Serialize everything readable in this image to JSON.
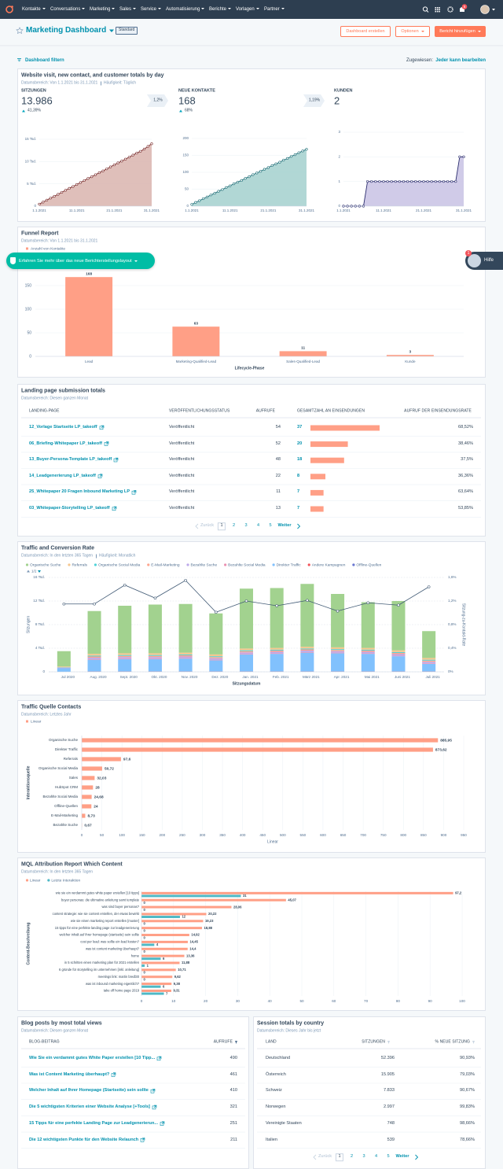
{
  "nav": {
    "items": [
      "Kontakte",
      "Conversations",
      "Marketing",
      "Sales",
      "Service",
      "Automatisierung",
      "Berichte",
      "Vorlagen",
      "Partner"
    ],
    "notifications": 5
  },
  "header": {
    "title": "Marketing Dashboard",
    "tag": "Standard",
    "buttons": [
      "Dashboard erstellen",
      "Optionen",
      "Bericht hinzufügen"
    ]
  },
  "filter_bar": {
    "filter": "Dashboard filtern",
    "assigned_label": "Zugewiesen:",
    "assigned_value": "Jeder kann bearbeiten"
  },
  "banner": "Erfahren Sie mehr über das neue Berichterstellungslayout",
  "help": {
    "label": "Hilfe",
    "badge": 1
  },
  "overview": {
    "title": "Website visit, new contact, and customer totals by day",
    "date_range": "Datumsbereich: Von 1.1.2021 bis 31.1.2021",
    "frequency": "Häufigkeit: Täglich",
    "kpis": [
      {
        "label": "SITZUNGEN",
        "value": "13.986",
        "change": "41,39%",
        "rate": "1,2%"
      },
      {
        "label": "NEUE KONTAKTE",
        "value": 168,
        "change": "68%",
        "rate": "1,19%"
      },
      {
        "label": "KUNDEN",
        "value": 2
      }
    ],
    "charts": [
      {
        "type": "area",
        "color": "#7b2e2e",
        "area_color": "#dcb8b2",
        "categories": [
          "1.1.2021",
          null,
          null,
          null,
          null,
          null,
          null,
          null,
          null,
          null,
          "11.1.2021",
          null,
          null,
          null,
          null,
          null,
          null,
          null,
          null,
          null,
          "21.1.2021",
          null,
          null,
          null,
          null,
          null,
          null,
          null,
          null,
          null,
          "31.1.2021"
        ],
        "values": [
          450,
          900,
          1350,
          1800,
          2200,
          2650,
          3100,
          3550,
          4000,
          4400,
          4850,
          5300,
          5750,
          6200,
          6600,
          7050,
          7500,
          7900,
          8350,
          8800,
          9250,
          9700,
          10100,
          10550,
          11000,
          11450,
          11900,
          12300,
          12800,
          13400,
          13986
        ],
        "ylim": [
          0,
          15000
        ],
        "yticks": [
          0,
          {
            "value": 5000,
            "label": "5 Tsd."
          },
          {
            "value": 10000,
            "label": "10 Tsd."
          },
          {
            "value": 15000,
            "label": "15 Tsd."
          }
        ]
      },
      {
        "type": "area",
        "color": "#1f6f78",
        "area_color": "#a9d3d0",
        "categories": [
          "1.1.2021",
          null,
          null,
          null,
          null,
          null,
          null,
          null,
          null,
          null,
          "11.1.2021",
          null,
          null,
          null,
          null,
          null,
          null,
          null,
          null,
          null,
          "21.1.2021",
          null,
          null,
          null,
          null,
          null,
          null,
          null,
          null,
          null,
          "31.1.2021"
        ],
        "values": [
          5,
          11,
          16,
          22,
          27,
          33,
          38,
          44,
          49,
          55,
          60,
          66,
          71,
          76,
          82,
          87,
          93,
          98,
          103,
          109,
          114,
          120,
          125,
          130,
          136,
          141,
          147,
          152,
          158,
          163,
          168
        ],
        "ylim": [
          0,
          200
        ],
        "yticks": [
          0,
          50,
          100,
          150,
          200
        ]
      },
      {
        "type": "area",
        "color": "#2b2d6e",
        "area_color": "#cbc5e6",
        "categories": [
          "1.1.2021",
          null,
          null,
          null,
          null,
          null,
          null,
          null,
          null,
          null,
          "11.1.2021",
          null,
          null,
          null,
          null,
          null,
          null,
          null,
          null,
          null,
          "21.1.2021",
          null,
          null,
          null,
          null,
          null,
          null,
          null,
          null,
          null,
          "31.1.2021"
        ],
        "values": [
          0,
          0,
          0,
          0,
          0,
          0,
          1,
          1,
          1,
          1,
          1,
          1,
          1,
          1,
          1,
          1,
          1,
          1,
          1,
          1,
          1,
          1,
          1,
          1,
          1,
          1,
          1,
          1,
          1,
          2,
          2
        ],
        "ylim": [
          0,
          3
        ],
        "yticks": [
          0,
          1,
          2,
          3
        ]
      }
    ]
  },
  "funnel": {
    "title": "Funnel Report",
    "date_range": "Datumsbereich: Von 1.1.2021 bis 31.1.2021",
    "chart": {
      "type": "bar",
      "legend": "Anzahl von Kontakte",
      "x_label": "Lifecycle-Phase",
      "color": "#ff9f86",
      "categories": [
        "Lead",
        "Marketing-Qualified-Lead",
        "Sales-Qualified-Lead",
        "Kunde"
      ],
      "values": [
        168,
        63,
        11,
        3
      ],
      "ylim": [
        0,
        175
      ],
      "yticks": [
        0,
        50,
        100,
        150
      ]
    }
  },
  "landing_pages": {
    "title": "Landing page submission totals",
    "date_range": "Datumsbereich: Diesen ganzen Monat",
    "columns": [
      "LANDING-PAGE",
      "VERÖFFENTLICHUNGSSTATUS",
      "AUFRUFE",
      "GESAMTZAHL AN EINSENDUNGEN",
      "AUFRUF DER EINSENDUNGSRATE"
    ],
    "bar_color": "#ff9f86",
    "rows": [
      [
        "12_Vorlage Startseite LP_takeoff",
        "Veröffentlicht",
        54,
        37,
        "68,52%"
      ],
      [
        "06_Briefing-Whitepaper LP_takeoff",
        "Veröffentlicht",
        52,
        20,
        "38,46%"
      ],
      [
        "13_Buyer-Persona-Template LP_takeoff",
        "Veröffentlicht",
        48,
        18,
        "37,5%"
      ],
      [
        "14_Leadgenerierung LP_takeoff",
        "Veröffentlicht",
        22,
        8,
        "36,36%"
      ],
      [
        "25_Whitepaper 20 Fragen Inbound Marketing LP",
        "Veröffentlicht",
        11,
        7,
        "63,64%"
      ],
      [
        "03_Whitepaper-Storytelling LP_takeoff",
        "Veröffentlicht",
        13,
        7,
        "53,85%"
      ]
    ],
    "pagination": {
      "prev": "Zurück",
      "pages": [
        1,
        2,
        3,
        4,
        5
      ],
      "next": "Weiter"
    }
  },
  "traffic": {
    "title": "Traffic and Conversion Rate",
    "date_range": "Datumsbereich: In den letzten 365 Tagen",
    "frequency": "Häufigkeit: Monatlich",
    "legend_page": "1/2",
    "chart": {
      "type": "stacked_bar_line",
      "y_label": "Sitzungen",
      "x_label": "Sitzungsdatum",
      "categories": [
        "Jul 2020",
        "Aug. 2020",
        "Sept. 2020",
        "Okt. 2020",
        "Nov. 2020",
        "Dez. 2020",
        "Jan. 2021",
        "Feb. 2021",
        "März 2021",
        "Apr. 2021",
        "Mai 2021",
        "Juni 2021",
        "Juli 2021"
      ],
      "series": [
        {
          "name": "Organische Suche",
          "color": "#a2d28f",
          "values": [
            2600,
            7250,
            8050,
            8250,
            8250,
            6950,
            10150,
            10150,
            10650,
            9050,
            7750,
            8350,
            4550
          ]
        },
        {
          "name": "Referrals",
          "color": "#f5c78e",
          "values": [
            100,
            300,
            300,
            300,
            300,
            300,
            300,
            300,
            300,
            300,
            300,
            300,
            300
          ]
        },
        {
          "name": "Organische Social Media",
          "color": "#51d3d9",
          "values": [
            50,
            150,
            150,
            150,
            150,
            150,
            150,
            150,
            150,
            150,
            150,
            150,
            150
          ]
        },
        {
          "name": "E-Mail-Marketing",
          "color": "#fea58e",
          "values": [
            50,
            200,
            200,
            200,
            200,
            200,
            200,
            200,
            200,
            200,
            200,
            200,
            200
          ]
        },
        {
          "name": "Bezahlte Suche",
          "color": "#bda9ea",
          "values": [
            100,
            250,
            250,
            250,
            250,
            250,
            250,
            250,
            250,
            250,
            250,
            250,
            250
          ]
        },
        {
          "name": "Bezahlte Social Media",
          "color": "#ea90b1",
          "values": [
            0,
            100,
            100,
            100,
            100,
            100,
            100,
            100,
            100,
            100,
            100,
            100,
            100
          ]
        },
        {
          "name": "Direkter Traffic",
          "color": "#81c1fd",
          "values": [
            600,
            2000,
            2100,
            2100,
            2200,
            1900,
            2900,
            3000,
            3200,
            3100,
            3000,
            2600,
            1300
          ]
        },
        {
          "name": "Andere Kampagnen",
          "color": "#f2545b",
          "values": [
            0,
            50,
            50,
            50,
            50,
            50,
            50,
            50,
            50,
            50,
            50,
            50,
            50
          ]
        },
        {
          "name": "Offline-Quellen",
          "color": "#6a78d1",
          "values": [
            0,
            0,
            0,
            0,
            0,
            0,
            0,
            0,
            0,
            0,
            0,
            0,
            0
          ]
        }
      ],
      "rate": {
        "name": "Sitzung-zu-Kontakt-Rate",
        "color": "#425b76",
        "axis": "y2",
        "values": [
          1.15,
          1.15,
          1.47,
          1.25,
          1.55,
          1.01,
          1.2,
          1.12,
          1.21,
          1.03,
          1.17,
          1.13,
          1.44
        ]
      },
      "ylim": [
        0,
        16000
      ],
      "yticks": [
        0,
        {
          "value": 4000,
          "label": "4 Tsd."
        },
        {
          "value": 8000,
          "label": "8 Tsd."
        },
        {
          "value": 12000,
          "label": "12 Tsd."
        },
        {
          "value": 16000,
          "label": "16 Tsd."
        }
      ],
      "y2lim": [
        0,
        1.6
      ],
      "y2ticks": [
        {
          "value": 0,
          "label": "0%"
        },
        {
          "value": 0.4,
          "label": "0,4%"
        },
        {
          "value": 0.8,
          "label": "0,8%"
        },
        {
          "value": 1.2,
          "label": "1,2%"
        },
        {
          "value": 1.6,
          "label": "1,6%"
        }
      ],
      "grid": true
    }
  },
  "sources": {
    "title": "Traffic Quelle Contacts",
    "date_range": "Datumsbereich: Letztes Jahr",
    "chart": {
      "type": "hbar",
      "y_label": "Interaktionsquelle",
      "x_label": "Linear",
      "categories": [
        "Organische Suche",
        "Direkter Traffic",
        "Referrals",
        "Organische Social Media",
        "Sales",
        "HubSpot CRM",
        "Bezahlte Social Media",
        "Offline-Quellen",
        "E-Mail-Marketing",
        "Bezahlte Suche"
      ],
      "series": [
        {
          "name": "Linear",
          "color": "#ff9f86",
          "values": [
            885.95,
            873.62,
            97.6,
            50.72,
            32.03,
            28,
            24.68,
            24,
            8.73,
            0.67
          ],
          "value_labels": [
            "885,95",
            "873,62",
            "97,6",
            "50,72",
            "32,03",
            "28",
            "24,68",
            "24",
            "8,73",
            "0,67"
          ]
        }
      ],
      "xlim": [
        0,
        950
      ],
      "xticks": [
        0,
        50,
        100,
        150,
        200,
        250,
        300,
        350,
        400,
        450,
        500,
        550,
        600,
        650,
        700,
        750,
        800,
        850,
        900,
        950
      ],
      "grid": true
    }
  },
  "mql": {
    "title": "MQL Attribution Report Which Content",
    "date_range": "Datumsbereich: In den letzten 365 Tagen",
    "chart": {
      "type": "grouped_hbar",
      "y_label": "Content-Beschreibung",
      "categories": [
        "wie sie ein verdammt gutes white paper erstellen [10 tipps]",
        "buyer personas: die ultimative anleitung samt template",
        "was sind buyer personas?",
        "content strategie: wie sie content erstellen, der etwas bewirkt",
        "wie sie einen marketing report erstellen [muster]",
        "15 tipps für eine perfekte landing page zur leadgenerierung",
        "welcher inhalt auf ihrer homepage (startseite) sein sollte",
        "cost per lead: was sollte ein lead kosten?",
        "was ist content marketing überhaupt?",
        "home",
        "in 5 schritten einen marketing plan für 2021 erstellen",
        "6 gründe für storytelling im unternehmen [inkl. anleitung]",
        "meetings link: martin bredl30",
        "was ist inbound marketing eigentlich?",
        "take off home page 2019"
      ],
      "series": [
        {
          "name": "Linear",
          "color": "#ff9f86",
          "values": [
            97.2,
            45.07,
            28.06,
            20.22,
            19.23,
            18.88,
            14.92,
            14.45,
            14.4,
            13.36,
            11.88,
            10.71,
            9.62,
            9.38,
            9.31
          ],
          "value_labels": [
            "97,2",
            "45,07",
            "28,06",
            "20,22",
            "19,23",
            "18,88",
            "14,92",
            "14,45",
            "14,4",
            "13,36",
            "11,88",
            "10,71",
            "9,62",
            "9,38",
            "9,31"
          ]
        },
        {
          "name": "Letzte Interaktion",
          "color": "#4fb9c6",
          "values": [
            31,
            0,
            0,
            12,
            0,
            0,
            0,
            4,
            0,
            6,
            1,
            0,
            0,
            6,
            7
          ]
        }
      ],
      "xlim": [
        0,
        100
      ],
      "xticks": [
        0,
        10,
        20,
        30,
        40,
        50,
        60,
        70,
        80,
        90,
        100
      ],
      "grid": true
    }
  },
  "blog": {
    "title": "Blog posts by most total views",
    "date_range": "Datumsbereich: Diesen ganzen Monat",
    "columns": [
      "BLOG-BEITRAG",
      "AUFRUFE"
    ],
    "rows": [
      [
        "Wie Sie ein verdammt gutes White Paper erstellen [10 Tipp...",
        490
      ],
      [
        "Was ist Content Marketing überhaupt?",
        461
      ],
      [
        "Welcher Inhalt auf Ihrer Homepage (Startseite) sein sollte",
        410
      ],
      [
        "Die 5 wichtigsten Kriterien einer Website Analyse [+Tools]",
        321
      ],
      [
        "15 Tipps für eine perfekte Landing Page zur Leadgenerierun...",
        251
      ],
      [
        "Die 12 wichtigsten Punkte für den Website Relaunch",
        211
      ]
    ]
  },
  "countries": {
    "title": "Session totals by country",
    "date_range": "Datumsbereich: Dieses Jahr bis jetzt",
    "columns": [
      "LAND",
      "SITZUNGEN",
      "% NEUE SITZUNG"
    ],
    "rows": [
      [
        "Deutschland",
        "52.396",
        "90,93%"
      ],
      [
        "Österreich",
        "15.905",
        "79,03%"
      ],
      [
        "Schweiz",
        "7.833",
        "90,67%"
      ],
      [
        "Norwegen",
        "2.997",
        "99,83%"
      ],
      [
        "Vereinigte Staaten",
        748,
        "98,66%"
      ],
      [
        "Italien",
        539,
        "78,66%"
      ]
    ],
    "pagination": {
      "prev": "Zurück",
      "pages": [
        1,
        2,
        3,
        4,
        5
      ],
      "next": "Weiter"
    }
  }
}
